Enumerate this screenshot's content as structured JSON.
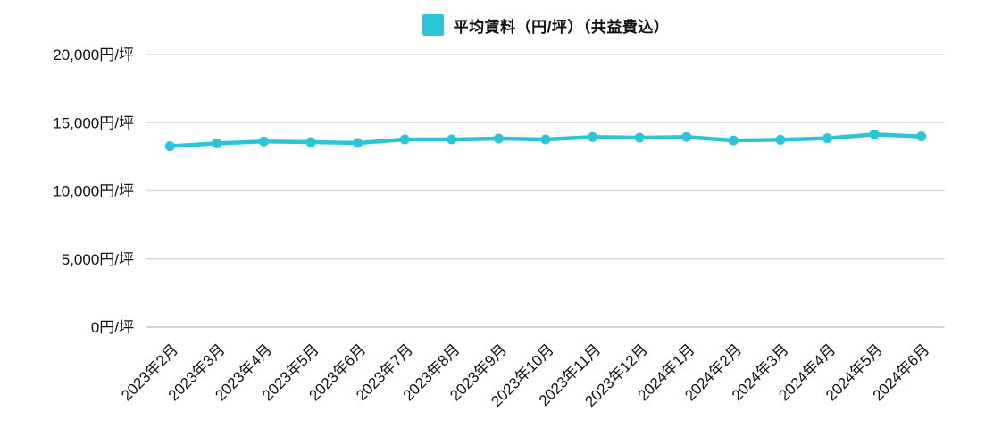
{
  "chart_data": {
    "type": "line",
    "legend": "平均賃料（円/坪）（共益費込）",
    "categories": [
      "2023年2月",
      "2023年3月",
      "2023年4月",
      "2023年5月",
      "2023年6月",
      "2023年7月",
      "2023年8月",
      "2023年9月",
      "2023年10月",
      "2023年11月",
      "2023年12月",
      "2024年1月",
      "2024年2月",
      "2024年3月",
      "2024年4月",
      "2024年5月",
      "2024年6月"
    ],
    "series": [
      {
        "name": "平均賃料（円/坪）（共益費込）",
        "values": [
          13270,
          13480,
          13620,
          13570,
          13510,
          13770,
          13770,
          13840,
          13770,
          13950,
          13900,
          13950,
          13700,
          13750,
          13860,
          14140,
          13990
        ]
      }
    ],
    "title": "",
    "xlabel": "",
    "ylabel": "",
    "unit_suffix": "円/坪",
    "y_ticks": [
      0,
      5000,
      10000,
      15000,
      20000
    ],
    "y_tick_labels": [
      "0円/坪",
      "5,000円/坪",
      "10,000円/坪",
      "15,000円/坪",
      "20,000円/坪"
    ],
    "ylim": [
      0,
      20000
    ],
    "grid": true,
    "legend_position": "top-center",
    "x_label_rotation": -45,
    "colors": {
      "line": "#2BC5D6",
      "grid": "#DBDBDB",
      "baseline": "#C9C9C9",
      "text": "#111111",
      "background": "#FFFFFF"
    }
  }
}
